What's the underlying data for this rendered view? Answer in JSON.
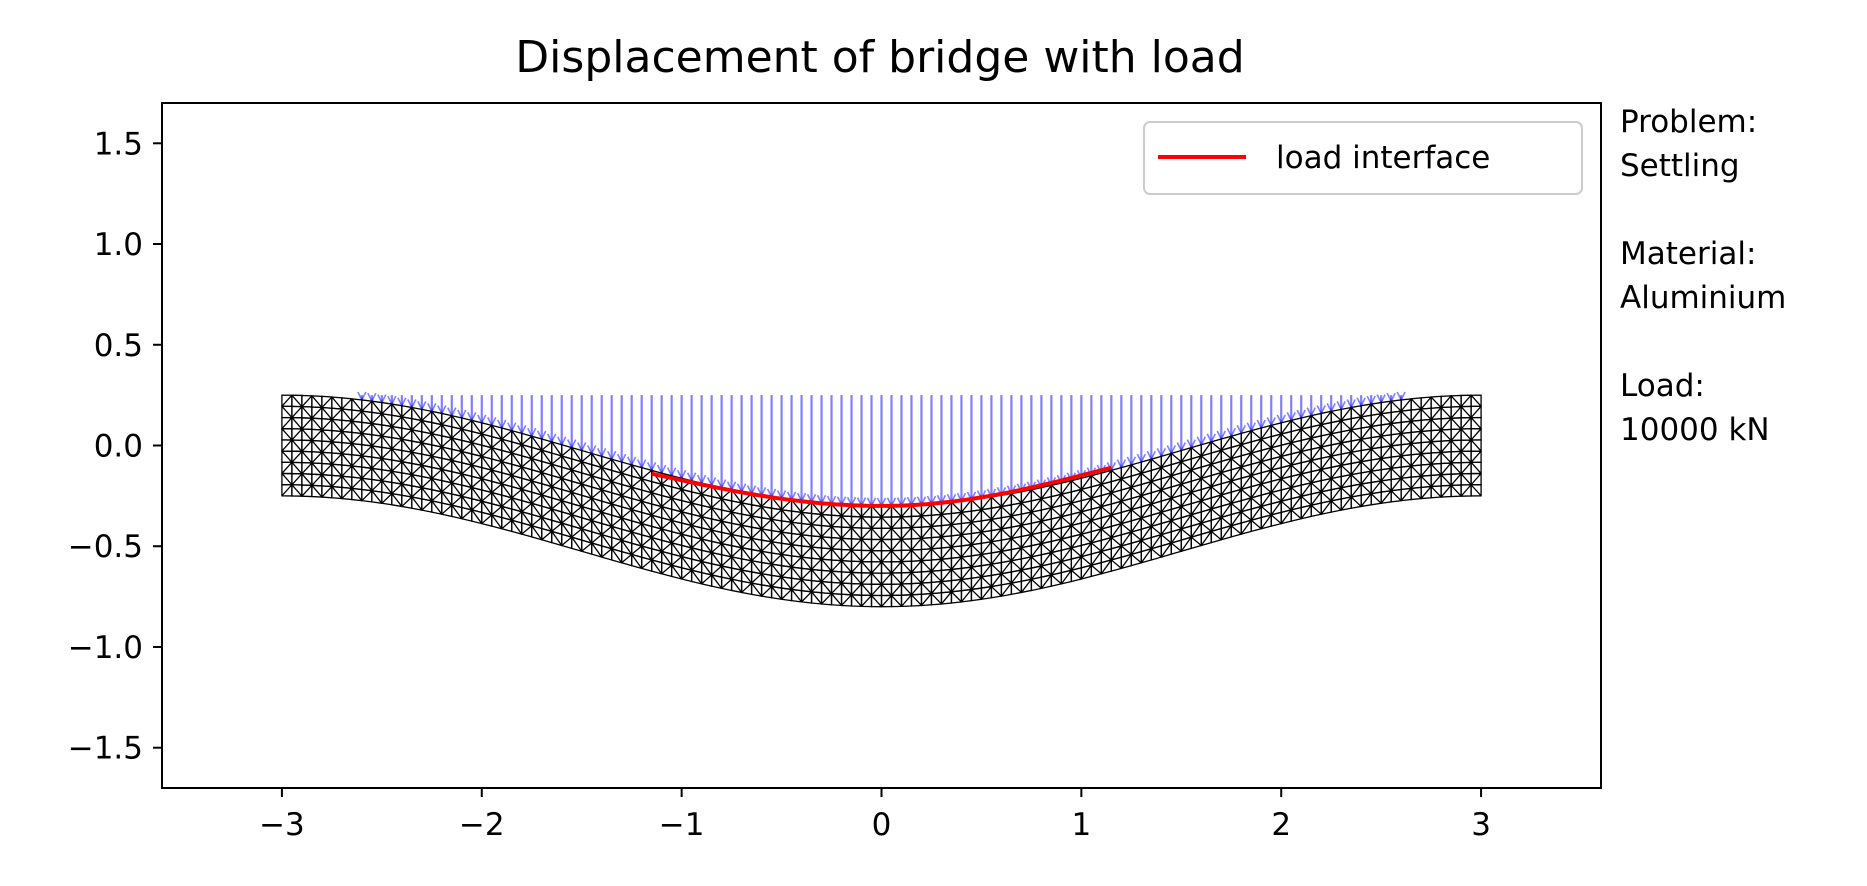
{
  "chart_data": {
    "type": "mesh_quiver",
    "title": "Displacement of bridge with load",
    "xlabel": "",
    "ylabel": "",
    "xlim": [
      -3.6,
      3.6
    ],
    "ylim": [
      -1.7,
      1.7
    ],
    "xticks": [
      -3,
      -2,
      -1,
      0,
      1,
      2,
      3
    ],
    "xtick_labels": [
      "−3",
      "−2",
      "−1",
      "0",
      "1",
      "2",
      "3"
    ],
    "yticks": [
      1.5,
      1.0,
      0.5,
      0.0,
      -0.5,
      -1.0,
      -1.5
    ],
    "ytick_labels": [
      "1.5",
      "1.0",
      "0.5",
      "0.0",
      "−0.5",
      "−1.0",
      "−1.5"
    ],
    "grid": false,
    "legend": {
      "position": "top-right",
      "entries": [
        {
          "label": "load interface",
          "color": "#ff0000"
        }
      ]
    },
    "beam": {
      "x_range": [
        -3,
        3
      ],
      "undeformed_top": 0.25,
      "undeformed_bottom": -0.25,
      "max_sag": 0.55,
      "mesh_color": "#000000"
    },
    "displacement_field": {
      "color": "#0000ff"
    },
    "load_interface": {
      "x_range": [
        -1.15,
        1.15
      ],
      "y_values": [
        -0.14,
        -0.3,
        -0.11
      ],
      "color": "#ff0000"
    }
  },
  "annotations": {
    "problem_label": "Problem:",
    "problem_value": "Settling",
    "material_label": "Material:",
    "material_value": "Aluminium",
    "load_label": "Load:",
    "load_value": "10000 kN"
  }
}
